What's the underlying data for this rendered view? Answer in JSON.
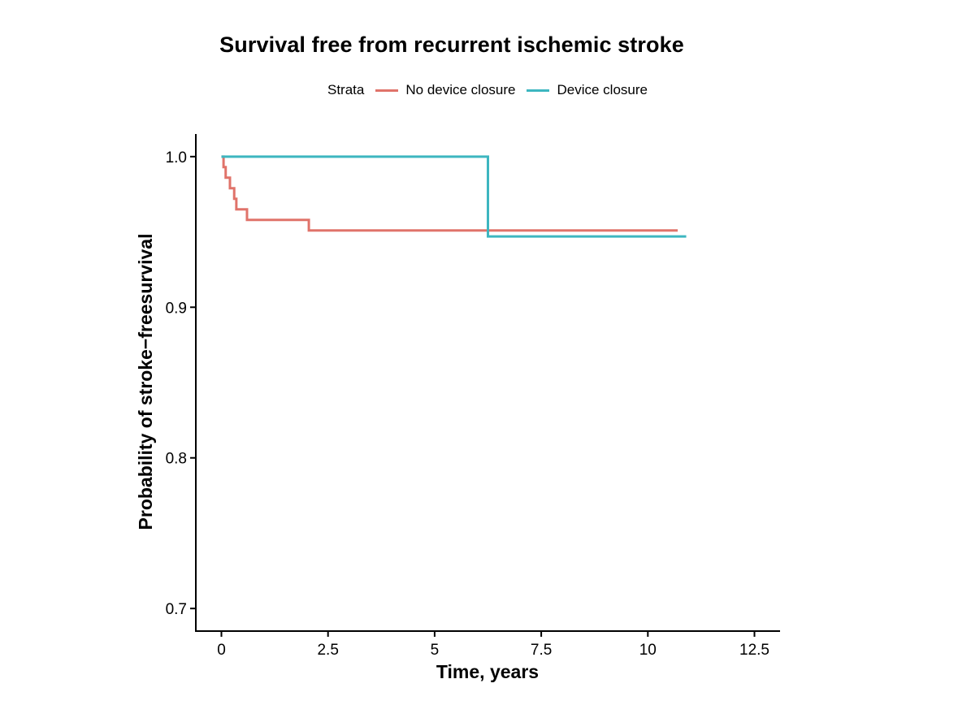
{
  "chart_data": {
    "type": "line",
    "title": "Survival free from recurrent ischemic stroke",
    "xlabel": "Time, years",
    "ylabel": "Probability of stroke−freesurvival",
    "xlim": [
      -0.6,
      13.1
    ],
    "ylim": [
      0.685,
      1.015
    ],
    "xticks": [
      0,
      2.5,
      5,
      7.5,
      10,
      12.5
    ],
    "xtick_labels": [
      "0",
      "2.5",
      "5",
      "7.5",
      "10",
      "12.5"
    ],
    "yticks": [
      0.7,
      0.8,
      0.9,
      1.0
    ],
    "ytick_labels": [
      "0.7",
      "0.8",
      "0.9",
      "1.0"
    ],
    "grid": false,
    "legend": {
      "title": "Strata",
      "placement": "top"
    },
    "series": [
      {
        "name": "No device closure",
        "color": "#E0736A",
        "step": true,
        "x": [
          0,
          0.05,
          0.1,
          0.2,
          0.3,
          0.35,
          0.6,
          2.05,
          10.7
        ],
        "y": [
          1.0,
          0.993,
          0.986,
          0.979,
          0.972,
          0.965,
          0.958,
          0.951,
          0.951
        ]
      },
      {
        "name": "Device closure",
        "color": "#3DB6C0",
        "step": true,
        "x": [
          0,
          6.25,
          10.9
        ],
        "y": [
          1.0,
          0.947,
          0.947
        ]
      }
    ]
  }
}
